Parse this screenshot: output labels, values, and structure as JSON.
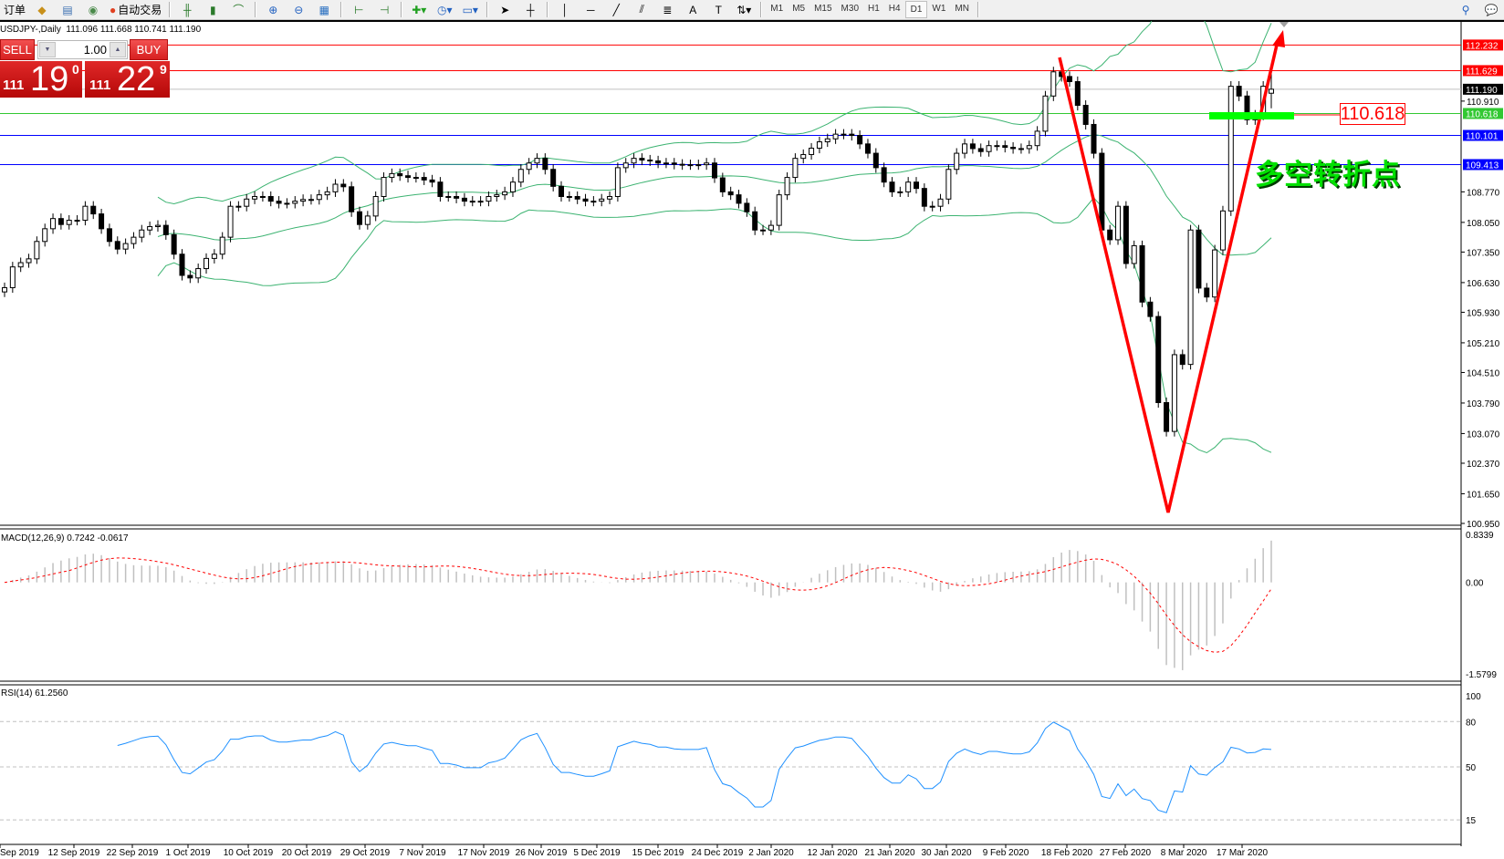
{
  "toolbar": {
    "new_order_label": "订单",
    "auto_trade_label": "自动交易",
    "icons": [
      "order-book-icon",
      "data-window-icon",
      "signal-icon",
      "bar-chart-icon",
      "candlestick-icon",
      "line-chart-icon",
      "zoom-in-icon",
      "zoom-out-icon",
      "tile-windows-icon",
      "autoscroll-icon",
      "chart-shift-icon",
      "indicators-icon",
      "periods-icon",
      "templates-icon",
      "cursor-icon",
      "crosshair-icon",
      "vertical-line-icon",
      "horizontal-line-icon",
      "trendline-icon",
      "equidistant-channel-icon",
      "fibonacci-icon",
      "text-icon",
      "text-label-icon",
      "arrows-icon"
    ],
    "timeframes": [
      "M1",
      "M5",
      "M15",
      "M30",
      "H1",
      "H4",
      "D1",
      "W1",
      "MN"
    ],
    "active_timeframe": "D1"
  },
  "chart": {
    "symbol_info": "USDJPY-,Daily  111.096 111.668 110.741 111.190"
  },
  "trade_panel": {
    "sell_label": "SELL",
    "buy_label": "BUY",
    "lot": "1.00",
    "sell_prefix": "111",
    "sell_main": "19",
    "sell_sup": "0",
    "buy_prefix": "111",
    "buy_main": "22",
    "buy_sup": "9"
  },
  "annotations": {
    "level_label": "110.618",
    "text": "多空转折点",
    "colors": {
      "v_arrow": "#ff0000",
      "turn_bar": "#00ff00",
      "text": "#00e000"
    }
  },
  "chart_data": [
    {
      "type": "candlestick",
      "symbol": "USDJPY-",
      "timeframe": "Daily",
      "ohlc_last": {
        "open": 111.096,
        "high": 111.668,
        "low": 110.741,
        "close": 111.19
      },
      "closes": [
        106.51,
        107.0,
        107.1,
        107.19,
        107.6,
        107.9,
        108.14,
        108.0,
        108.1,
        108.1,
        108.43,
        108.25,
        107.9,
        107.6,
        107.42,
        107.55,
        107.7,
        107.87,
        107.95,
        107.98,
        107.76,
        107.3,
        106.8,
        106.74,
        106.96,
        107.2,
        107.3,
        107.7,
        108.43,
        108.43,
        108.6,
        108.66,
        108.66,
        108.55,
        108.5,
        108.5,
        108.55,
        108.59,
        108.59,
        108.7,
        108.77,
        108.95,
        108.89,
        108.3,
        108.0,
        108.2,
        108.66,
        109.11,
        109.2,
        109.15,
        109.11,
        109.11,
        109.05,
        109.0,
        108.66,
        108.66,
        108.62,
        108.55,
        108.55,
        108.55,
        108.66,
        108.7,
        108.77,
        109.0,
        109.3,
        109.45,
        109.56,
        109.3,
        108.9,
        108.66,
        108.66,
        108.6,
        108.55,
        108.55,
        108.6,
        108.66,
        109.34,
        109.45,
        109.56,
        109.52,
        109.5,
        109.45,
        109.45,
        109.42,
        109.41,
        109.41,
        109.41,
        109.45,
        109.1,
        108.77,
        108.7,
        108.5,
        108.3,
        107.87,
        107.87,
        107.98,
        108.7,
        109.11,
        109.56,
        109.65,
        109.8,
        109.95,
        110.02,
        110.13,
        110.13,
        110.1,
        109.9,
        109.68,
        109.34,
        109.0,
        108.77,
        108.77,
        109.0,
        108.85,
        108.43,
        108.43,
        108.6,
        109.3,
        109.68,
        109.9,
        109.79,
        109.72,
        109.86,
        109.86,
        109.82,
        109.79,
        109.79,
        109.86,
        110.2,
        111.03,
        111.6,
        111.49,
        111.37,
        110.81,
        110.36,
        109.68,
        107.87,
        107.64,
        108.43,
        107.08,
        107.5,
        106.17,
        105.83,
        103.8,
        103.12,
        104.93,
        104.7,
        107.87,
        106.5,
        106.29,
        107.4,
        108.32,
        111.26,
        111.03,
        110.47,
        110.58,
        111.26,
        111.19
      ],
      "x_tick_labels": [
        "Sep 2019",
        "12 Sep 2019",
        "22 Sep 2019",
        "1 Oct 2019",
        "10 Oct 2019",
        "20 Oct 2019",
        "29 Oct 2019",
        "7 Nov 2019",
        "17 Nov 2019",
        "26 Nov 2019",
        "5 Dec 2019",
        "15 Dec 2019",
        "24 Dec 2019",
        "2 Jan 2020",
        "12 Jan 2020",
        "21 Jan 2020",
        "30 Jan 2020",
        "9 Feb 2020",
        "18 Feb 2020",
        "27 Feb 2020",
        "8 Mar 2020",
        "17 Mar 2020"
      ],
      "y_tick_labels": [
        "110.910",
        "108.770",
        "108.050",
        "107.350",
        "106.630",
        "105.930",
        "105.210",
        "104.510",
        "103.790",
        "103.070",
        "102.370",
        "101.650",
        "100.950"
      ],
      "ylim": [
        100.95,
        112.6
      ],
      "horizontal_lines": [
        {
          "price": 112.232,
          "label": "112.232",
          "color": "#ff0000"
        },
        {
          "price": 111.629,
          "label": "111.629",
          "color": "#ff0000"
        },
        {
          "price": 111.19,
          "label": "111.190",
          "color": "#c0c0c0",
          "label_bg": "#000000"
        },
        {
          "price": 110.618,
          "label": "110.618",
          "color": "#32c832"
        },
        {
          "price": 110.101,
          "label": "110.101",
          "color": "#0000ff"
        },
        {
          "price": 109.413,
          "label": "109.413",
          "color": "#0000ff"
        }
      ],
      "overlay": {
        "name": "Bollinger Bands",
        "period": 20,
        "deviations": 2,
        "color": "#3cb371"
      },
      "grid": false
    },
    {
      "type": "bar",
      "indicator_label": "MACD(12,26,9) 0.7242 -0.0617",
      "params": [
        12,
        26,
        9
      ],
      "y_tick_labels": [
        "0.8339",
        "0.00",
        "-1.5799"
      ],
      "ylim": [
        -1.5799,
        0.8339
      ],
      "colors": {
        "histogram": "#c0c0c0",
        "signal": "#ff0000"
      }
    },
    {
      "type": "line",
      "indicator_label": "RSI(14) 61.2560",
      "period": 14,
      "y_tick_labels": [
        "100",
        "80",
        "50",
        "15"
      ],
      "ylim": [
        0,
        100
      ],
      "levels": [
        80,
        50,
        15
      ],
      "colors": {
        "line": "#1e90ff"
      }
    }
  ]
}
